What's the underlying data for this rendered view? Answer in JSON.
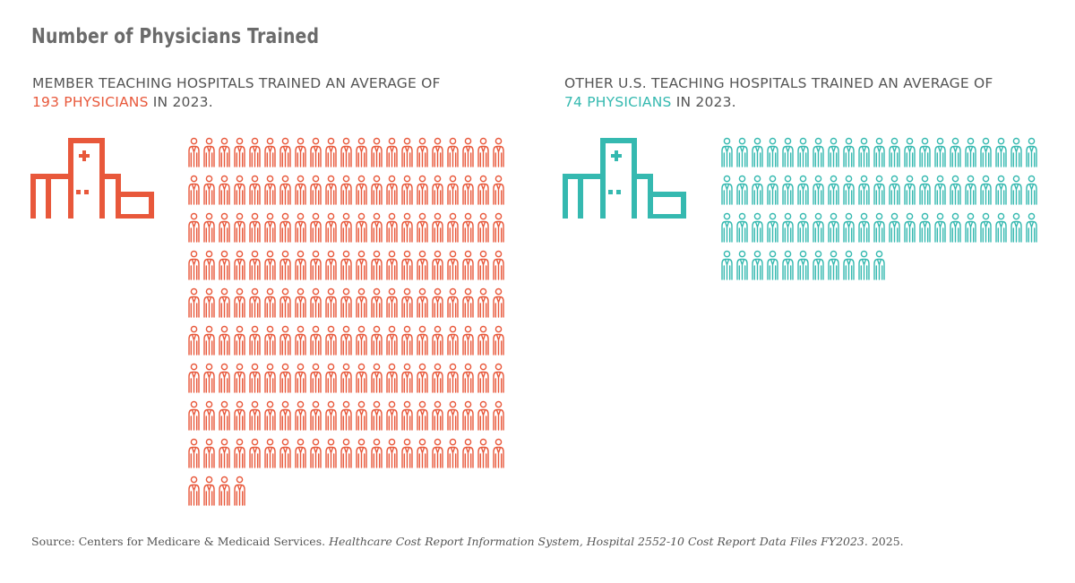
{
  "title": "Number of Physicians Trained",
  "left": {
    "line1": "MEMBER TEACHING HOSPITALS TRAINED AN AVERAGE OF",
    "highlight": "193 PHYSICIANS",
    "suffix": " IN 2023.",
    "icon": "hospital-icon"
  },
  "right": {
    "line1": "OTHER U.S. TEACHING HOSPITALS TRAINED AN AVERAGE OF",
    "highlight": "74 PHYSICIANS",
    "suffix": " IN 2023.",
    "icon": "hospital-icon"
  },
  "source": {
    "prefix": "Source: Centers for Medicare & Medicaid Services. ",
    "italic": "Healthcare Cost Report Information System, Hospital 2552-10 Cost Report Data Files FY2023.",
    "suffix": " 2025."
  },
  "colors": {
    "member": "#e8583b",
    "other": "#35b9b0",
    "text": "#555555"
  },
  "chart_data": [
    {
      "type": "pictograph",
      "series": [
        {
          "name": "Member teaching hospitals",
          "values": [
            193
          ]
        }
      ],
      "unit": "physicians",
      "icon": "physician-icon",
      "per_row": 21,
      "color": "#e8583b"
    },
    {
      "type": "pictograph",
      "series": [
        {
          "name": "Other U.S. teaching hospitals",
          "values": [
            74
          ]
        }
      ],
      "unit": "physicians",
      "icon": "physician-icon",
      "per_row": 21,
      "color": "#35b9b0"
    }
  ]
}
